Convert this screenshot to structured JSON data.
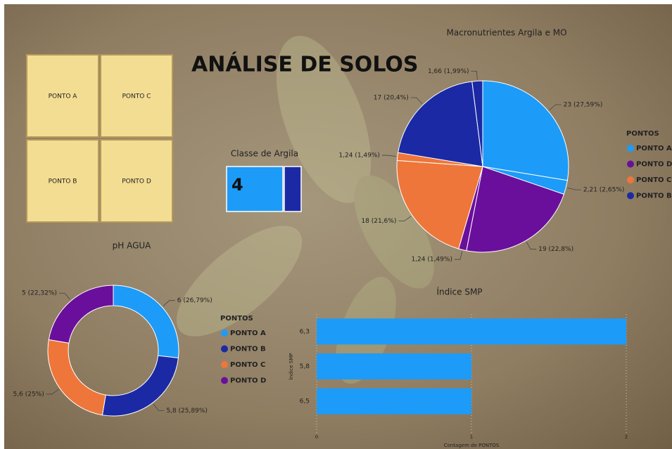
{
  "header": {
    "title": "ANÁLISE DE SOLOS"
  },
  "buttons": [
    "PONTO A",
    "PONTO C",
    "PONTO B",
    "PONTO D"
  ],
  "card": {
    "title": "Classe de Argila",
    "value": 4
  },
  "chart_data": [
    {
      "type": "pie",
      "title": "Macronutrientes Argila e MO",
      "values": [
        23,
        2.21,
        19,
        1.24,
        18,
        1.24,
        17,
        1.66
      ],
      "value_labels": [
        "23 (27,59%)",
        "2,21 (2,65%)",
        "19 (22,8%)",
        "1,24 (1,49%)",
        "18 (21,6%)",
        "1,24 (1,49%)",
        "17 (20,4%)",
        "1,66 (1,99%)"
      ],
      "colors": [
        "#1d9bf8",
        "#1d9bf8",
        "#6a0f9c",
        "#6a0f9c",
        "#ee763a",
        "#ee763a",
        "#1b2aa4",
        "#1b2aa4"
      ],
      "legend": {
        "title": "PONTOS",
        "items": [
          {
            "name": "PONTO A",
            "color": "#1d9bf8"
          },
          {
            "name": "PONTO D",
            "color": "#6a0f9c"
          },
          {
            "name": "PONTO C",
            "color": "#ee763a"
          },
          {
            "name": "PONTO B",
            "color": "#1b2aa4"
          }
        ]
      }
    },
    {
      "type": "donut",
      "title": "pH AGUA",
      "values": [
        6,
        5.8,
        5.6,
        5
      ],
      "value_labels": [
        "6 (26,79%)",
        "5,8 (25,89%)",
        "5,6 (25%)",
        "5 (22,32%)"
      ],
      "colors": [
        "#1d9bf8",
        "#1b2aa4",
        "#ee763a",
        "#6a0f9c"
      ],
      "legend": {
        "title": "PONTOS",
        "items": [
          {
            "name": "PONTO A",
            "color": "#1d9bf8"
          },
          {
            "name": "PONTO B",
            "color": "#1b2aa4"
          },
          {
            "name": "PONTO C",
            "color": "#ee763a"
          },
          {
            "name": "PONTO D",
            "color": "#6a0f9c"
          }
        ]
      }
    },
    {
      "type": "hbar",
      "title": "Índice SMP",
      "x_label": "Contagem de PONTOS",
      "y_label": "Índice SMP",
      "categories": [
        "6,3",
        "5,8",
        "6,5"
      ],
      "values": [
        2,
        1,
        1
      ],
      "color": "#1d9bf8",
      "xlim": [
        0,
        2
      ],
      "xticks": [
        0,
        1,
        2
      ],
      "grid": true
    }
  ]
}
